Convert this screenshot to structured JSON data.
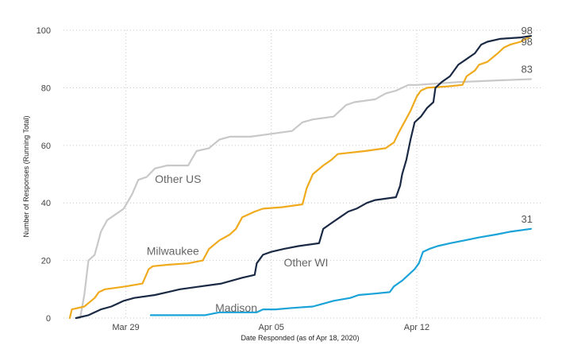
{
  "chart_data": {
    "type": "line",
    "title": "",
    "xlabel": "Date Responded (as of Apr 18, 2020)",
    "ylabel": "Number of Responses (Running Total)",
    "x_ticks": [
      {
        "label": "Mar 29",
        "day": 29
      },
      {
        "label": "Apr 05",
        "day": 36
      },
      {
        "label": "Apr 12",
        "day": 43
      }
    ],
    "xlim": [
      26,
      49
    ],
    "ylim": [
      0,
      100
    ],
    "y_ticks": [
      0,
      20,
      40,
      60,
      80,
      100
    ],
    "grid": true,
    "series": [
      {
        "name": "Other US",
        "color": "#c8c8c8",
        "end_label": "83",
        "label_at": [
          30.4,
          47
        ],
        "points": [
          [
            26.6,
            0
          ],
          [
            26.8,
            0
          ],
          [
            27.0,
            8
          ],
          [
            27.2,
            20
          ],
          [
            27.5,
            22
          ],
          [
            27.8,
            30
          ],
          [
            28.1,
            34
          ],
          [
            28.5,
            36
          ],
          [
            28.9,
            38
          ],
          [
            29.3,
            43
          ],
          [
            29.6,
            48
          ],
          [
            30.0,
            49
          ],
          [
            30.4,
            52
          ],
          [
            31.0,
            53
          ],
          [
            31.6,
            53
          ],
          [
            32.0,
            53
          ],
          [
            32.4,
            58
          ],
          [
            33.0,
            59
          ],
          [
            33.5,
            62
          ],
          [
            34.0,
            63
          ],
          [
            35.0,
            63
          ],
          [
            36.0,
            64
          ],
          [
            37.0,
            65
          ],
          [
            37.5,
            68
          ],
          [
            38.0,
            69
          ],
          [
            39.0,
            70
          ],
          [
            39.6,
            74
          ],
          [
            40.0,
            75
          ],
          [
            41.0,
            76
          ],
          [
            41.5,
            78
          ],
          [
            42.0,
            79
          ],
          [
            42.6,
            81
          ],
          [
            43.0,
            81
          ],
          [
            44.0,
            81.5
          ],
          [
            45.0,
            82
          ],
          [
            46.0,
            82.3
          ],
          [
            47.0,
            82.6
          ],
          [
            48.5,
            83
          ]
        ]
      },
      {
        "name": "Milwaukee",
        "color": "#f0aa1e",
        "end_label": "98",
        "label_at": [
          30.0,
          22
        ],
        "points": [
          [
            26.3,
            0
          ],
          [
            26.4,
            3
          ],
          [
            27.0,
            4
          ],
          [
            27.5,
            7
          ],
          [
            27.7,
            9
          ],
          [
            28.0,
            10
          ],
          [
            29.0,
            11
          ],
          [
            29.8,
            12
          ],
          [
            30.1,
            17
          ],
          [
            30.3,
            18
          ],
          [
            31.0,
            18.5
          ],
          [
            32.0,
            19
          ],
          [
            32.7,
            20
          ],
          [
            33.0,
            24
          ],
          [
            33.5,
            27
          ],
          [
            34.0,
            29
          ],
          [
            34.3,
            31
          ],
          [
            34.6,
            35
          ],
          [
            35.2,
            37
          ],
          [
            35.6,
            38
          ],
          [
            36.5,
            38.5
          ],
          [
            37.5,
            39.5
          ],
          [
            37.7,
            45
          ],
          [
            38.0,
            50
          ],
          [
            38.5,
            53
          ],
          [
            38.9,
            55
          ],
          [
            39.2,
            57
          ],
          [
            40.5,
            58
          ],
          [
            41.5,
            59
          ],
          [
            41.9,
            61
          ],
          [
            42.1,
            64
          ],
          [
            42.4,
            68
          ],
          [
            42.7,
            72
          ],
          [
            43.0,
            77
          ],
          [
            43.2,
            79
          ],
          [
            43.5,
            80
          ],
          [
            44.5,
            80.5
          ],
          [
            45.2,
            81
          ],
          [
            45.4,
            84
          ],
          [
            45.8,
            86
          ],
          [
            46.0,
            88
          ],
          [
            46.4,
            89
          ],
          [
            46.9,
            92
          ],
          [
            47.2,
            94
          ],
          [
            47.5,
            95
          ],
          [
            48.0,
            96
          ],
          [
            48.5,
            98
          ]
        ]
      },
      {
        "name": "Other WI",
        "color": "#1b2a44",
        "end_label": "98",
        "label_at": [
          36.6,
          18
        ],
        "points": [
          [
            26.6,
            0
          ],
          [
            27.2,
            1
          ],
          [
            27.8,
            3
          ],
          [
            28.3,
            4
          ],
          [
            28.9,
            6
          ],
          [
            29.4,
            7
          ],
          [
            30.4,
            8
          ],
          [
            31.0,
            9
          ],
          [
            31.6,
            10
          ],
          [
            32.6,
            11
          ],
          [
            33.6,
            12
          ],
          [
            34.6,
            14
          ],
          [
            35.2,
            15
          ],
          [
            35.3,
            19
          ],
          [
            35.6,
            22
          ],
          [
            36.0,
            23
          ],
          [
            36.6,
            24
          ],
          [
            37.3,
            25
          ],
          [
            38.3,
            26
          ],
          [
            38.5,
            31
          ],
          [
            38.9,
            33
          ],
          [
            39.3,
            35
          ],
          [
            39.7,
            37
          ],
          [
            40.1,
            38
          ],
          [
            40.6,
            40
          ],
          [
            41.0,
            41
          ],
          [
            42.0,
            42
          ],
          [
            42.2,
            46
          ],
          [
            42.3,
            50
          ],
          [
            42.5,
            55
          ],
          [
            42.7,
            62
          ],
          [
            42.9,
            68
          ],
          [
            43.2,
            70
          ],
          [
            43.5,
            73
          ],
          [
            43.8,
            75
          ],
          [
            43.9,
            80
          ],
          [
            44.2,
            82
          ],
          [
            44.6,
            84
          ],
          [
            45.0,
            88
          ],
          [
            45.4,
            90
          ],
          [
            45.8,
            92
          ],
          [
            46.1,
            95
          ],
          [
            46.4,
            96
          ],
          [
            47.0,
            97
          ],
          [
            48.0,
            97.5
          ],
          [
            48.5,
            98
          ]
        ]
      },
      {
        "name": "Madison",
        "color": "#1aa3d8",
        "end_label": "31",
        "label_at": [
          33.3,
          2.2
        ],
        "points": [
          [
            30.2,
            1
          ],
          [
            31.0,
            1
          ],
          [
            31.3,
            1
          ],
          [
            32.8,
            1
          ],
          [
            33.5,
            2
          ],
          [
            34.5,
            2
          ],
          [
            35.3,
            2
          ],
          [
            35.6,
            3
          ],
          [
            36.2,
            3
          ],
          [
            37.0,
            3.5
          ],
          [
            38.0,
            4
          ],
          [
            38.5,
            5
          ],
          [
            39.0,
            6
          ],
          [
            39.8,
            7
          ],
          [
            40.2,
            8
          ],
          [
            41.0,
            8.5
          ],
          [
            41.7,
            9
          ],
          [
            41.9,
            11
          ],
          [
            42.3,
            13
          ],
          [
            42.6,
            15
          ],
          [
            42.9,
            17
          ],
          [
            43.1,
            19
          ],
          [
            43.3,
            23
          ],
          [
            43.6,
            24
          ],
          [
            44.0,
            25
          ],
          [
            44.6,
            26
          ],
          [
            45.3,
            27
          ],
          [
            46.0,
            28
          ],
          [
            46.8,
            29
          ],
          [
            47.5,
            30
          ],
          [
            48.5,
            31
          ]
        ]
      }
    ]
  }
}
